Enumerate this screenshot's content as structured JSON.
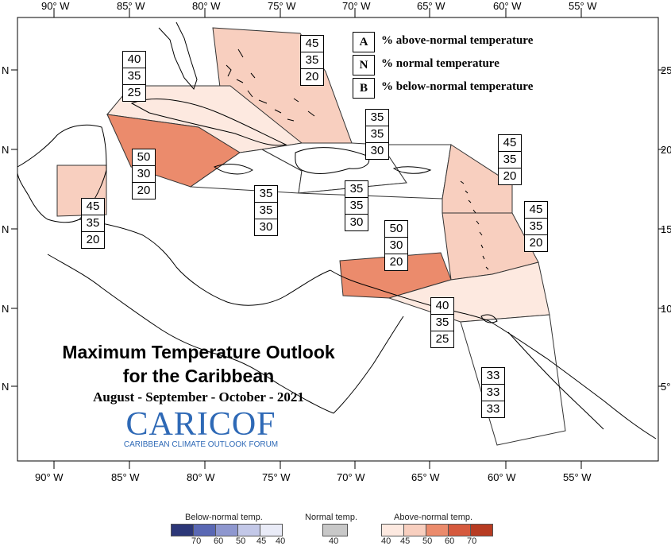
{
  "map": {
    "title_line1": "Maximum Temperature Outlook",
    "title_line2": "for the Caribbean",
    "period": "August - September - October - 2021",
    "lon_labels": [
      "90° W",
      "85° W",
      "80° W",
      "75° W",
      "70° W",
      "65° W",
      "60° W",
      "55° W"
    ],
    "lat_labels_left": [
      "N",
      "N",
      "N",
      "N",
      "N"
    ],
    "lat_labels_right": [
      "25",
      "20",
      "15",
      "10",
      "5°"
    ]
  },
  "key": {
    "items": [
      {
        "letter": "A",
        "text": "% above-normal temperature"
      },
      {
        "letter": "N",
        "text": "% normal temperature"
      },
      {
        "letter": "B",
        "text": "% below-normal temperature"
      }
    ]
  },
  "regions": [
    {
      "id": "bahamas",
      "above": "45",
      "normal": "35",
      "below": "20",
      "fill": "#f8cfbf"
    },
    {
      "id": "cuba",
      "above": "40",
      "normal": "35",
      "below": "25",
      "fill": "#fde9e0"
    },
    {
      "id": "cayman",
      "above": "50",
      "normal": "30",
      "below": "20",
      "fill": "#eb8b6c"
    },
    {
      "id": "belize",
      "above": "45",
      "normal": "35",
      "below": "20",
      "fill": "#f8cfbf"
    },
    {
      "id": "jamaica",
      "above": "35",
      "normal": "35",
      "below": "30",
      "fill": "#ffffff"
    },
    {
      "id": "hispaniola",
      "above": "35",
      "normal": "35",
      "below": "30",
      "fill": "#ffffff"
    },
    {
      "id": "puerto-rico",
      "above": "35",
      "normal": "35",
      "below": "30",
      "fill": "#ffffff"
    },
    {
      "id": "leeward-islands",
      "above": "45",
      "normal": "35",
      "below": "20",
      "fill": "#f8cfbf"
    },
    {
      "id": "windward-islands",
      "above": "45",
      "normal": "35",
      "below": "20",
      "fill": "#f8cfbf"
    },
    {
      "id": "abc-islands",
      "above": "50",
      "normal": "30",
      "below": "20",
      "fill": "#eb8b6c"
    },
    {
      "id": "trinidad",
      "above": "40",
      "normal": "35",
      "below": "25",
      "fill": "#fde9e0"
    },
    {
      "id": "guianas",
      "above": "33",
      "normal": "33",
      "below": "33",
      "fill": "#ffffff"
    }
  ],
  "logo": {
    "name": "CARICOF",
    "subtitle": "CARIBBEAN CLIMATE OUTLOOK FORUM"
  },
  "colorbar": {
    "below_title": "Below-normal temp.",
    "normal_title": "Normal temp.",
    "above_title": "Above-normal temp.",
    "below_ticks": [
      "70",
      "60",
      "50",
      "45",
      "40"
    ],
    "normal_ticks": [
      "40"
    ],
    "above_ticks": [
      "40",
      "45",
      "50",
      "60",
      "70"
    ],
    "below_colors": [
      "#2c3778",
      "#5a68b4",
      "#8e97cf",
      "#c3c8e8",
      "#e9ebf7"
    ],
    "normal_color": "#c8c8c8",
    "above_colors": [
      "#fde9e0",
      "#f8cfbf",
      "#eb8b6c",
      "#d65a3e",
      "#b73b22"
    ]
  }
}
